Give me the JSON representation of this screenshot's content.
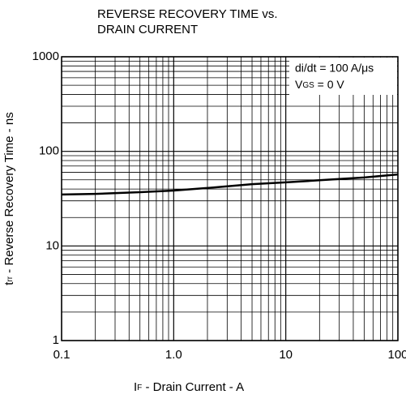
{
  "chart_data": {
    "type": "line",
    "title": [
      "REVERSE RECOVERY TIME vs.",
      "DRAIN CURRENT"
    ],
    "x_label": {
      "symbol": "I",
      "subscript": "F",
      "text": " -  Drain Current   - A"
    },
    "y_label": {
      "symbol": "t",
      "subscript": "rr",
      "text": " - Reverse Recovery Time  -  ns"
    },
    "annotation": {
      "line1": "di/dt = 100 A/μs",
      "symbol": "V",
      "subscript": "GS",
      "rest": " = 0 V"
    },
    "x": [
      0.1,
      0.2,
      0.5,
      1,
      2,
      5,
      10,
      20,
      50,
      100
    ],
    "series": [
      {
        "name": "trr",
        "color": "#000000",
        "values": [
          35,
          35.5,
          37,
          38.5,
          41,
          45,
          47,
          49.5,
          53,
          57
        ]
      }
    ],
    "xlim": [
      0.1,
      100
    ],
    "ylim": [
      1,
      1000
    ],
    "xticks": [
      0.1,
      {
        "value": 1,
        "label": "1.0"
      },
      10,
      100
    ],
    "yticks": [
      1,
      10,
      100,
      1000
    ],
    "xminor": [
      0.2,
      0.3,
      0.4,
      0.5,
      0.6,
      0.7,
      0.8,
      0.9,
      2,
      3,
      4,
      5,
      6,
      7,
      8,
      9,
      20,
      30,
      40,
      50,
      60,
      70,
      80,
      90
    ],
    "yminor": [
      2,
      3,
      4,
      5,
      6,
      7,
      8,
      9,
      20,
      30,
      40,
      50,
      60,
      70,
      80,
      90,
      200,
      300,
      400,
      500,
      600,
      700,
      800,
      900
    ],
    "xscale": "log",
    "yscale": "log",
    "grid": true
  }
}
